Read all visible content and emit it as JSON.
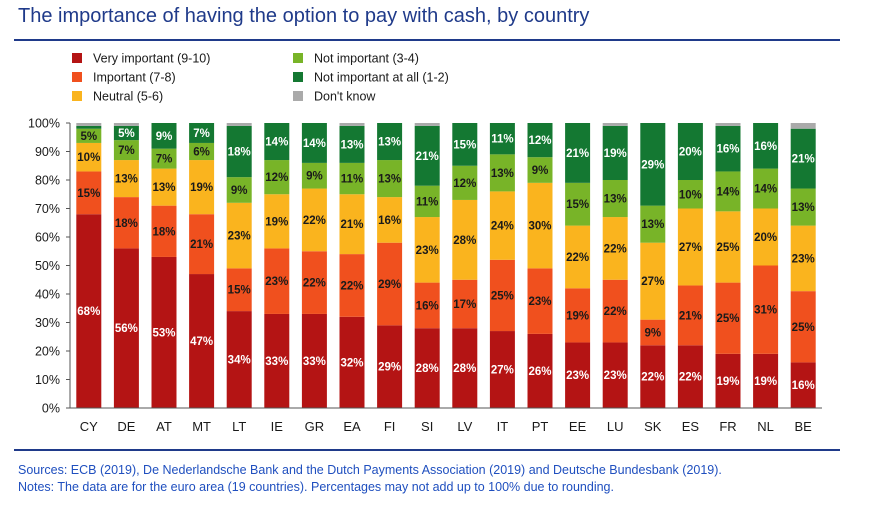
{
  "title": "The importance of having the option to pay with cash, by country",
  "notes": {
    "sources": "Sources: ECB (2019), De Nederlandsche Bank and the Dutch Payments Association (2019) and Deutsche Bundesbank (2019).",
    "notes": "Notes: The data are for the euro area (19 countries). Percentages may not add up to 100% due to rounding."
  },
  "chart_data": {
    "type": "bar",
    "stacked": true,
    "ylim": [
      0,
      100
    ],
    "yticks": [
      "0%",
      "10%",
      "20%",
      "30%",
      "40%",
      "50%",
      "60%",
      "70%",
      "80%",
      "90%",
      "100%"
    ],
    "legend_placement": "top-left",
    "categories": [
      "CY",
      "DE",
      "AT",
      "MT",
      "LT",
      "IE",
      "GR",
      "EA",
      "FI",
      "SI",
      "LV",
      "IT",
      "PT",
      "EE",
      "LU",
      "SK",
      "ES",
      "FR",
      "NL",
      "BE"
    ],
    "series": [
      {
        "name": "Very important (9-10)",
        "color": "#b41414",
        "label_color": "#ffffff",
        "values": [
          68,
          56,
          53,
          47,
          34,
          33,
          33,
          32,
          29,
          28,
          28,
          27,
          26,
          23,
          23,
          22,
          22,
          19,
          19,
          16
        ],
        "labels": [
          "68%",
          "56%",
          "53%",
          "47%",
          "34%",
          "33%",
          "33%",
          "32%",
          "29%",
          "28%",
          "28%",
          "27%",
          "26%",
          "23%",
          "23%",
          "22%",
          "22%",
          "19%",
          "19%",
          "16%"
        ]
      },
      {
        "name": "Important (7-8)",
        "color": "#f0501e",
        "label_color": "#1a1a1a",
        "values": [
          15,
          18,
          18,
          21,
          15,
          23,
          22,
          22,
          29,
          16,
          17,
          25,
          23,
          19,
          22,
          9,
          21,
          25,
          31,
          25
        ],
        "labels": [
          "15%",
          "18%",
          "18%",
          "21%",
          "15%",
          "23%",
          "22%",
          "22%",
          "29%",
          "16%",
          "17%",
          "25%",
          "23%",
          "19%",
          "22%",
          "9%",
          "21%",
          "25%",
          "31%",
          "25%"
        ]
      },
      {
        "name": "Neutral (5-6)",
        "color": "#fab41e",
        "label_color": "#1a1a1a",
        "values": [
          10,
          13,
          13,
          19,
          23,
          19,
          22,
          21,
          16,
          23,
          28,
          24,
          30,
          22,
          22,
          27,
          27,
          25,
          20,
          23
        ],
        "labels": [
          "10%",
          "13%",
          "13%",
          "19%",
          "23%",
          "19%",
          "22%",
          "21%",
          "16%",
          "23%",
          "28%",
          "24%",
          "30%",
          "22%",
          "22%",
          "27%",
          "27%",
          "25%",
          "20%",
          "23%"
        ]
      },
      {
        "name": "Not important (3-4)",
        "color": "#78b428",
        "label_color": "#1a1a1a",
        "values": [
          5,
          7,
          7,
          6,
          9,
          12,
          9,
          11,
          13,
          11,
          12,
          13,
          9,
          15,
          13,
          13,
          10,
          14,
          14,
          13
        ],
        "labels": [
          "5%",
          "7%",
          "7%",
          "6%",
          "9%",
          "12%",
          "9%",
          "11%",
          "13%",
          "11%",
          "12%",
          "13%",
          "9%",
          "15%",
          "13%",
          "13%",
          "10%",
          "14%",
          "14%",
          "13%"
        ]
      },
      {
        "name": "Not important at all (1-2)",
        "color": "#147832",
        "label_color": "#ffffff",
        "values": [
          1,
          5,
          9,
          7,
          18,
          14,
          14,
          13,
          13,
          21,
          15,
          11,
          12,
          21,
          19,
          29,
          20,
          16,
          16,
          21
        ],
        "labels": [
          "",
          "5%",
          "9%",
          "7%",
          "18%",
          "14%",
          "14%",
          "13%",
          "13%",
          "21%",
          "15%",
          "11%",
          "12%",
          "21%",
          "19%",
          "29%",
          "20%",
          "16%",
          "16%",
          "21%"
        ]
      },
      {
        "name": "Don't know",
        "color": "#aaaaaa",
        "label_color": "#1a1a1a",
        "values": [
          1,
          1,
          0,
          0,
          1,
          0,
          0,
          1,
          0,
          1,
          0,
          0,
          0,
          0,
          1,
          0,
          0,
          1,
          0,
          2
        ],
        "labels": [
          "",
          "",
          "",
          "",
          "",
          "",
          "",
          "",
          "",
          "",
          "",
          "",
          "",
          "",
          "",
          "",
          "",
          "",
          "",
          ""
        ]
      }
    ]
  }
}
